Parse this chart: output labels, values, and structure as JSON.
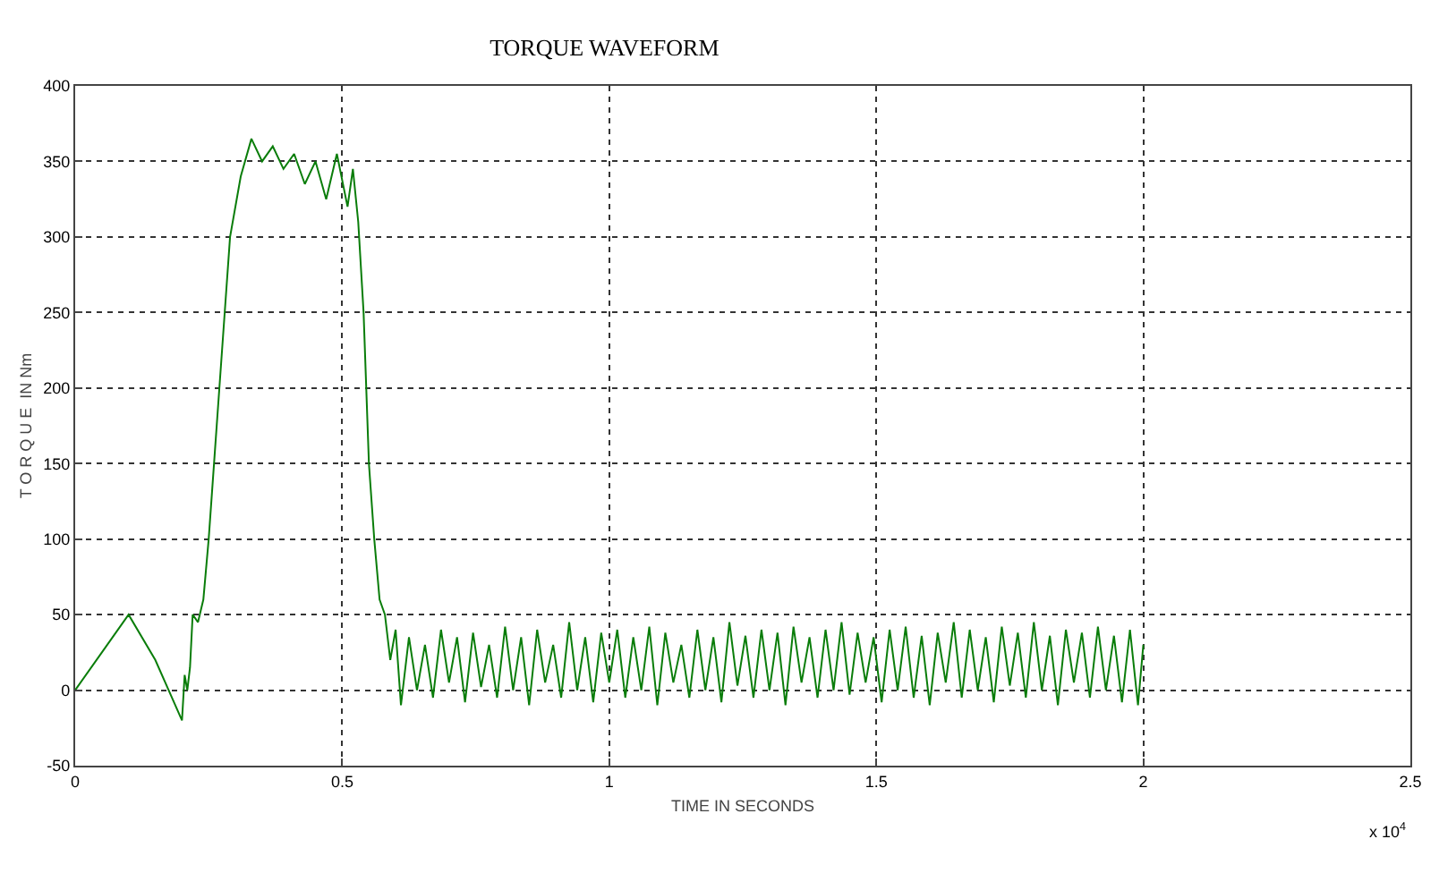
{
  "chart_data": {
    "type": "line",
    "title": "TORQUE WAVEFORM",
    "xlabel": "TIME IN SECONDS",
    "ylabel": "T O R Q U E  IN Nm",
    "annotations": [
      "x 10$^{4}$"
    ],
    "xlim": [
      0,
      2.5
    ],
    "xticks": [
      0,
      0.5,
      1,
      1.5,
      2,
      2.5
    ],
    "ylim": [
      -50,
      400
    ],
    "yticks": [
      -50,
      0,
      50,
      100,
      150,
      200,
      250,
      300,
      350,
      400
    ],
    "grid": true,
    "marker": "none",
    "line_style": "solid",
    "series": [
      {
        "color": "#0a7d0a",
        "x": [
          0,
          0.05,
          0.1,
          0.15,
          0.2,
          0.205,
          0.21,
          0.215,
          0.22,
          0.23,
          0.24,
          0.25,
          0.27,
          0.29,
          0.31,
          0.33,
          0.35,
          0.37,
          0.39,
          0.41,
          0.43,
          0.45,
          0.47,
          0.49,
          0.51,
          0.52,
          0.53,
          0.54,
          0.55,
          0.56,
          0.57,
          0.58,
          0.59,
          0.6,
          0.61,
          0.625,
          0.64,
          0.655,
          0.67,
          0.685,
          0.7,
          0.715,
          0.73,
          0.745,
          0.76,
          0.775,
          0.79,
          0.805,
          0.82,
          0.835,
          0.85,
          0.865,
          0.88,
          0.895,
          0.91,
          0.925,
          0.94,
          0.955,
          0.97,
          0.985,
          1,
          1.015,
          1.03,
          1.045,
          1.06,
          1.075,
          1.09,
          1.105,
          1.12,
          1.135,
          1.15,
          1.165,
          1.18,
          1.195,
          1.21,
          1.225,
          1.24,
          1.255,
          1.27,
          1.285,
          1.3,
          1.315,
          1.33,
          1.345,
          1.36,
          1.375,
          1.39,
          1.405,
          1.42,
          1.435,
          1.45,
          1.465,
          1.48,
          1.495,
          1.51,
          1.525,
          1.54,
          1.555,
          1.57,
          1.585,
          1.6,
          1.615,
          1.63,
          1.645,
          1.66,
          1.675,
          1.69,
          1.705,
          1.72,
          1.735,
          1.75,
          1.765,
          1.78,
          1.795,
          1.81,
          1.825,
          1.84,
          1.855,
          1.87,
          1.885,
          1.9,
          1.915,
          1.93,
          1.945,
          1.96,
          1.975,
          1.99,
          2
        ],
        "values": [
          0,
          25,
          50,
          20,
          -20,
          10,
          0,
          15,
          50,
          45,
          60,
          100,
          200,
          300,
          340,
          365,
          350,
          360,
          345,
          355,
          335,
          350,
          325,
          355,
          320,
          345,
          310,
          250,
          150,
          100,
          60,
          50,
          20,
          40,
          -10,
          35,
          0,
          30,
          -5,
          40,
          5,
          35,
          -8,
          38,
          2,
          30,
          -5,
          42,
          0,
          35,
          -10,
          40,
          5,
          30,
          -5,
          45,
          0,
          35,
          -8,
          38,
          5,
          40,
          -5,
          35,
          0,
          42,
          -10,
          38,
          5,
          30,
          -5,
          40,
          0,
          35,
          -8,
          45,
          3,
          36,
          -5,
          40,
          0,
          38,
          -10,
          42,
          5,
          35,
          -5,
          40,
          0,
          45,
          -3,
          38,
          5,
          35,
          -8,
          40,
          0,
          42,
          -5,
          36,
          -10,
          38,
          5,
          45,
          -5,
          40,
          0,
          35,
          -8,
          42,
          3,
          38,
          -5,
          45,
          0,
          36,
          -10,
          40,
          5,
          38,
          -5,
          42,
          0,
          36,
          -8,
          40,
          -10,
          30
        ]
      }
    ]
  }
}
